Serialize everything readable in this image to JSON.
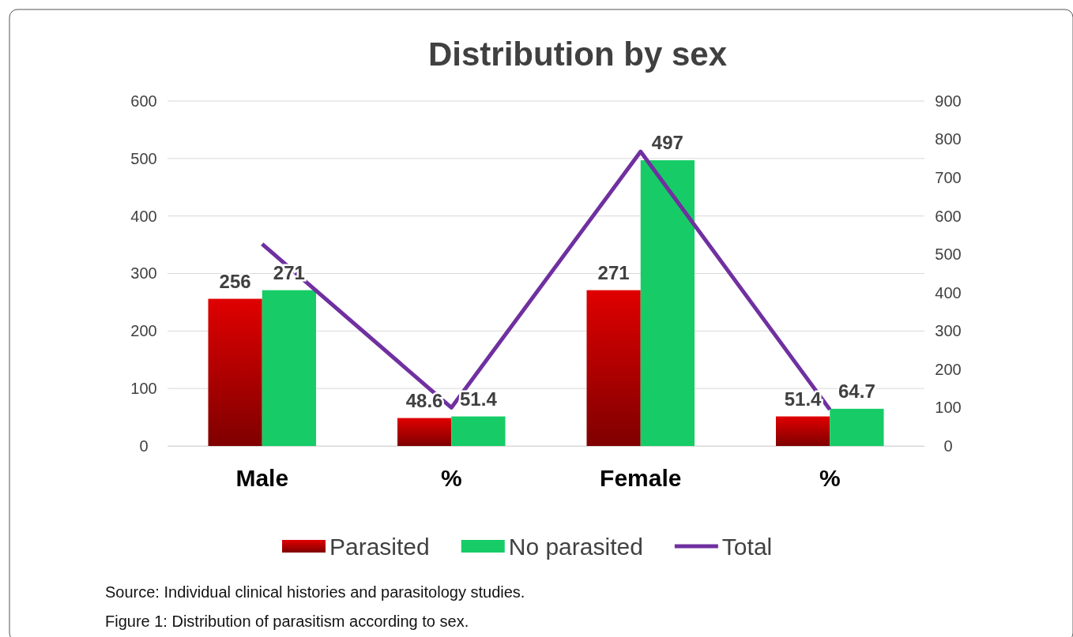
{
  "chart_data": {
    "type": "bar",
    "title": "Distribution by sex",
    "categories": [
      "Male",
      "%",
      "Female",
      "%"
    ],
    "series": [
      {
        "name": "Parasited",
        "color": "#e00000",
        "values": [
          256,
          48.6,
          271,
          51.4
        ],
        "value_labels": [
          "256",
          "48.6",
          "271",
          "51.4"
        ]
      },
      {
        "name": "No parasited",
        "color": "#17cc66",
        "values": [
          271,
          51.4,
          497,
          64.7
        ],
        "value_labels": [
          "271",
          "51.4",
          "497",
          "64.7"
        ]
      },
      {
        "name": "Total",
        "type": "line",
        "axis": "y2",
        "color": "#7030a0",
        "values": [
          527,
          100,
          768,
          95
        ]
      }
    ],
    "ylim": [
      0,
      600
    ],
    "yticks": [
      0,
      100,
      200,
      300,
      400,
      500,
      600
    ],
    "y2lim": [
      0,
      900
    ],
    "y2ticks": [
      0,
      100,
      200,
      300,
      400,
      500,
      600,
      700,
      800,
      900
    ],
    "grid": "y",
    "legend": "bottom",
    "marker": "none",
    "line_style": "solid",
    "annotations": [
      "Source: Individual clinical histories and parasitology studies.",
      "Figure 1: Distribution of parasitism according to sex."
    ]
  }
}
